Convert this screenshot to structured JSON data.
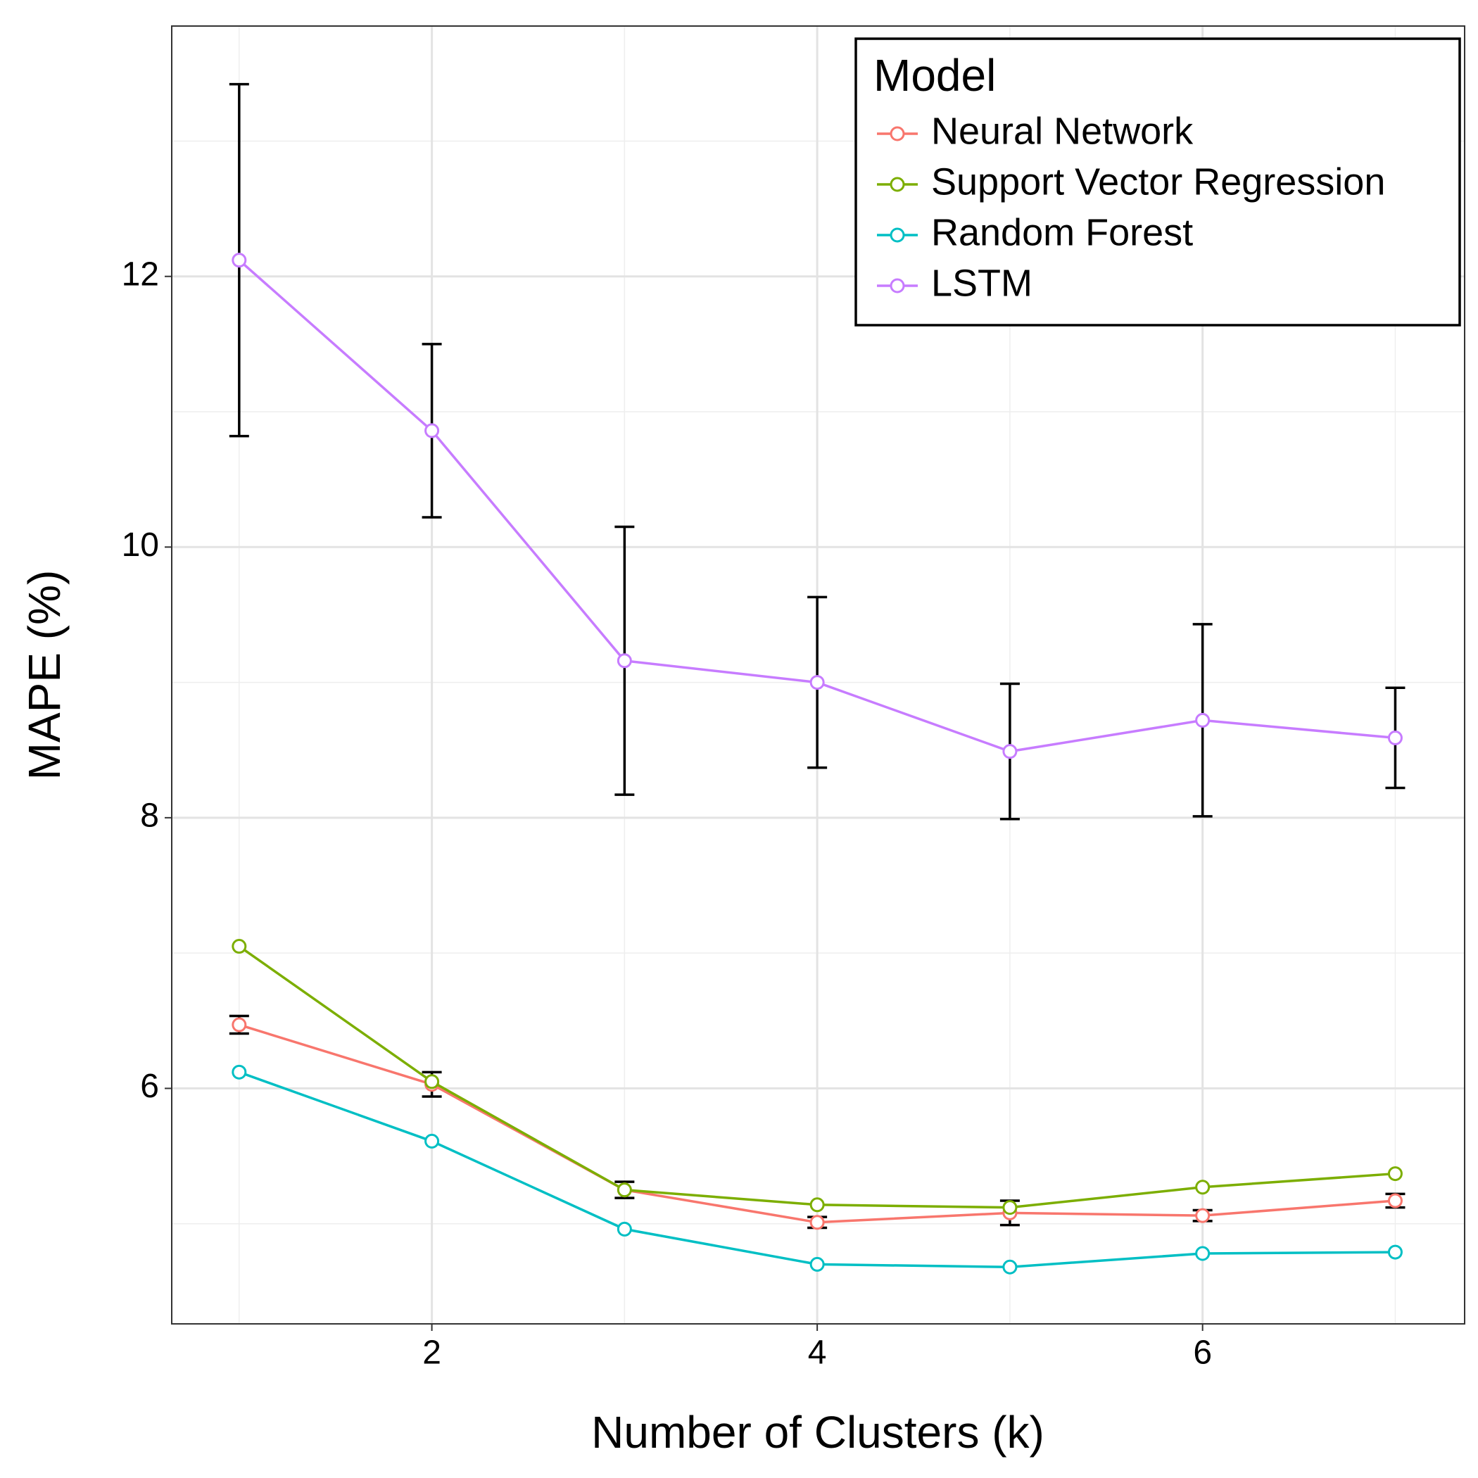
{
  "chart_data": {
    "type": "line",
    "x_label": "Number of Clusters (k)",
    "y_label": "MAPE (%)",
    "legend_title": "Model",
    "legend_position": "top-right",
    "grid": true,
    "x": [
      1,
      2,
      3,
      4,
      5,
      6,
      7
    ],
    "xlim": [
      0.65,
      7.36
    ],
    "ylim": [
      4.26,
      13.85
    ],
    "xticks": [
      2,
      4,
      6
    ],
    "yticks": [
      6,
      8,
      10,
      12
    ],
    "xminor_ticks": [
      1,
      3,
      5,
      7
    ],
    "yminor_ticks": [
      5,
      7,
      9,
      11,
      13
    ],
    "series": [
      {
        "name": "Neural Network",
        "color": "#F8766D",
        "values": [
          6.47,
          6.03,
          5.25,
          5.01,
          5.08,
          5.06,
          5.17
        ],
        "errors": [
          0.065,
          0.09,
          0.06,
          0.04,
          0.09,
          0.04,
          0.05
        ]
      },
      {
        "name": "Support Vector Regression",
        "color": "#7CAE00",
        "values": [
          7.05,
          6.05,
          5.25,
          5.14,
          5.12,
          5.27,
          5.37
        ]
      },
      {
        "name": "Random Forest",
        "color": "#00BFC4",
        "values": [
          6.12,
          5.61,
          4.96,
          4.7,
          4.68,
          4.78,
          4.79
        ]
      },
      {
        "name": "LSTM",
        "color": "#C77CFF",
        "values": [
          12.12,
          10.86,
          9.16,
          9.0,
          8.49,
          8.72,
          8.59
        ],
        "errors": [
          1.3,
          0.64,
          0.99,
          0.63,
          0.5,
          0.71,
          0.37
        ]
      }
    ]
  }
}
